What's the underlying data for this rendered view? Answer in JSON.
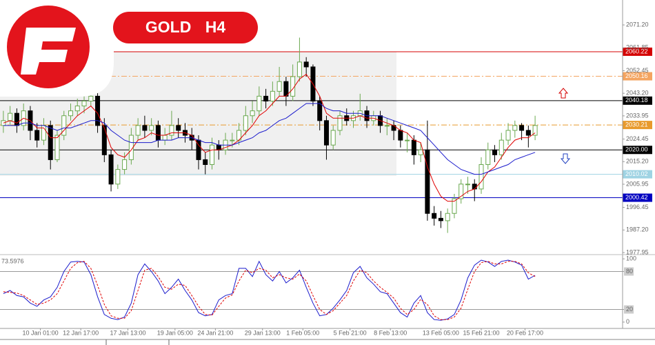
{
  "chart_data": [
    {
      "type": "candlestick",
      "title": "GOLD H4",
      "xlim": [
        -0.5,
        92
      ],
      "xticks": [
        {
          "value": 5.5,
          "label": "10 Jan 01:00"
        },
        {
          "value": 11.5,
          "label": "12 Jan 17:00"
        },
        {
          "value": 18.5,
          "label": "17 Jan 13:00"
        },
        {
          "value": 25.5,
          "label": "19 Jan 05:00"
        },
        {
          "value": 31.5,
          "label": "24 Jan 21:00"
        },
        {
          "value": 38.5,
          "label": "29 Jan 13:00"
        },
        {
          "value": 44.5,
          "label": "1 Feb 05:00"
        },
        {
          "value": 51.5,
          "label": "5 Feb 21:00"
        },
        {
          "value": 57.5,
          "label": "8 Feb 13:00"
        },
        {
          "value": 65,
          "label": "13 Feb 05:00"
        },
        {
          "value": 71,
          "label": "15 Feb 21:00"
        },
        {
          "value": 77.5,
          "label": "20 Feb 17:00"
        }
      ],
      "ylim": [
        1977.4,
        2081.4
      ],
      "yticks": [
        {
          "value": 2071.2,
          "label": "2071.20"
        },
        2061.85,
        2052.45,
        {
          "value": 2043.2,
          "label": "2043.20"
        },
        2033.95,
        2024.45,
        {
          "value": 2015.2,
          "label": "2015.20"
        },
        2005.95,
        1996.45,
        {
          "value": 1987.2,
          "label": "1987.20"
        },
        1977.95
      ],
      "up_color": "#6aa84f",
      "down_color": "#000000",
      "open": [
        2030,
        2032,
        2035,
        2030,
        2036,
        2028,
        2024,
        2030,
        2016,
        2026,
        2034,
        2036,
        2038,
        2040,
        2042,
        2030,
        2018,
        2006,
        2012,
        2016,
        2026,
        2030,
        2028,
        2030,
        2024,
        2026,
        2030,
        2028,
        2026,
        2024,
        2016,
        2014,
        2022,
        2020,
        2024,
        2024,
        2028,
        2034,
        2036,
        2042,
        2040,
        2044,
        2048,
        2042,
        2050,
        2056,
        2054,
        2040,
        2032,
        2022,
        2028,
        2034,
        2032,
        2034,
        2036,
        2032,
        2034,
        2030,
        2030,
        2028,
        2024,
        2024,
        2018,
        2020,
        1994,
        1992,
        1991,
        1994,
        2000,
        2006,
        2006,
        2004,
        2014,
        2020,
        2018,
        2024,
        2028,
        2030,
        2028,
        2026
      ],
      "high": [
        2036,
        2038,
        2037,
        2039,
        2038,
        2031,
        2033,
        2032,
        2028,
        2036,
        2039,
        2041,
        2042,
        2045,
        2044,
        2033,
        2020,
        2014,
        2019,
        2029,
        2033,
        2034,
        2033,
        2032,
        2029,
        2036,
        2033,
        2031,
        2029,
        2026,
        2019,
        2025,
        2024,
        2027,
        2027,
        2031,
        2038,
        2040,
        2046,
        2045,
        2048,
        2054,
        2050,
        2055,
        2066,
        2058,
        2055,
        2042,
        2034,
        2030,
        2036,
        2037,
        2036,
        2043,
        2038,
        2036,
        2036,
        2033,
        2032,
        2030,
        2027,
        2026,
        2023,
        2032,
        1997,
        1995,
        1996,
        2002,
        2008,
        2009,
        2008,
        2017,
        2023,
        2022,
        2027,
        2031,
        2032,
        2031,
        2030,
        2034
      ],
      "low": [
        2027,
        2030,
        2027,
        2028,
        2024,
        2021,
        2022,
        2012,
        2015,
        2024,
        2032,
        2034,
        2035,
        2038,
        2027,
        2015,
        2003,
        2004,
        2010,
        2014,
        2024,
        2025,
        2026,
        2021,
        2022,
        2024,
        2025,
        2023,
        2020,
        2012,
        2010,
        2012,
        2016,
        2018,
        2021,
        2022,
        2026,
        2031,
        2034,
        2037,
        2038,
        2042,
        2038,
        2040,
        2048,
        2050,
        2038,
        2028,
        2016,
        2020,
        2026,
        2030,
        2029,
        2032,
        2029,
        2030,
        2027,
        2026,
        2024,
        2021,
        2019,
        2014,
        2015,
        1991,
        1989,
        1988,
        1986,
        1992,
        1998,
        2002,
        1999,
        2002,
        2012,
        2015,
        2016,
        2022,
        2025,
        2024,
        2021,
        2024
      ],
      "close": [
        2032,
        2035,
        2030,
        2036,
        2028,
        2024,
        2030,
        2016,
        2026,
        2034,
        2036,
        2038,
        2040,
        2042,
        2030,
        2018,
        2006,
        2012,
        2016,
        2026,
        2030,
        2028,
        2030,
        2024,
        2026,
        2030,
        2028,
        2026,
        2024,
        2016,
        2014,
        2022,
        2020,
        2024,
        2024,
        2028,
        2034,
        2036,
        2042,
        2040,
        2044,
        2048,
        2042,
        2050,
        2056,
        2054,
        2040,
        2032,
        2022,
        2028,
        2034,
        2032,
        2034,
        2036,
        2032,
        2034,
        2030,
        2030,
        2028,
        2024,
        2024,
        2018,
        2020,
        1994,
        1992,
        1991,
        1994,
        2000,
        2006,
        2006,
        2004,
        2014,
        2020,
        2018,
        2024,
        2028,
        2030,
        2028,
        2026,
        2030
      ],
      "series": [
        {
          "color": "#e00000",
          "values": [
            2031,
            2032,
            2031,
            2033,
            2032,
            2029,
            2029,
            2025,
            2025,
            2028,
            2031,
            2034,
            2036,
            2038,
            2035,
            2029,
            2021,
            2018,
            2017,
            2020,
            2024,
            2025,
            2027,
            2026,
            2026,
            2027,
            2027,
            2027,
            2026,
            2022,
            2019,
            2020,
            2020,
            2021,
            2022,
            2024,
            2027,
            2030,
            2034,
            2036,
            2039,
            2042,
            2042,
            2045,
            2049,
            2051,
            2047,
            2042,
            2035,
            2033,
            2033,
            2033,
            2033,
            2034,
            2033,
            2033,
            2032,
            2031,
            2030,
            2028,
            2027,
            2024,
            2023,
            2013,
            2006,
            2001,
            1999,
            1999,
            2001,
            2003,
            2004,
            2007,
            2011,
            2013,
            2017,
            2021,
            2024,
            2025,
            2025,
            2027
          ]
        },
        {
          "color": "#1a1acc",
          "values": [
            2030,
            2030,
            2030,
            2031,
            2031,
            2030,
            2030,
            2029,
            2028,
            2029,
            2029,
            2030,
            2031,
            2032,
            2032,
            2031,
            2028,
            2026,
            2024,
            2023,
            2023,
            2023,
            2023,
            2024,
            2024,
            2024,
            2025,
            2025,
            2025,
            2024,
            2023,
            2023,
            2022,
            2022,
            2022,
            2023,
            2024,
            2025,
            2027,
            2028,
            2030,
            2032,
            2033,
            2035,
            2037,
            2039,
            2039,
            2039,
            2037,
            2036,
            2036,
            2035,
            2035,
            2035,
            2034,
            2034,
            2034,
            2033,
            2032,
            2031,
            2030,
            2029,
            2028,
            2025,
            2022,
            2019,
            2016,
            2014,
            2012,
            2011,
            2010,
            2010,
            2011,
            2012,
            2013,
            2014,
            2016,
            2017,
            2018,
            2019
          ]
        }
      ],
      "levels": [
        {
          "value": 2060.22,
          "color": "#d40000",
          "dash": false
        },
        {
          "value": 2050.16,
          "color": "#f4a460",
          "dash": true
        },
        {
          "value": 2040.18,
          "color": "#000000",
          "dash": false
        },
        {
          "value": 2030.21,
          "color": "#e89a2c",
          "dash": true
        },
        {
          "value": 2020,
          "label": "2020.00",
          "color": "#000000",
          "dash": false
        },
        {
          "value": 2010.02,
          "color": "#9fd3e3",
          "dash": false
        },
        {
          "value": 2000.42,
          "color": "#0000c0",
          "dash": false
        }
      ]
    },
    {
      "type": "line",
      "indicator_label": "73.5976",
      "ylim": [
        -10,
        106.7
      ],
      "yticks": [
        100,
        80,
        20,
        0
      ],
      "levels": [
        80,
        20
      ],
      "series": [
        {
          "color": "#1a1acc",
          "dash": false,
          "values": [
            45,
            50,
            42,
            40,
            30,
            25,
            35,
            40,
            55,
            80,
            95,
            96,
            95,
            75,
            40,
            12,
            6,
            4,
            8,
            30,
            75,
            92,
            80,
            65,
            45,
            55,
            68,
            50,
            35,
            15,
            10,
            12,
            35,
            42,
            45,
            85,
            85,
            72,
            96,
            75,
            65,
            80,
            62,
            70,
            82,
            55,
            30,
            10,
            12,
            22,
            35,
            50,
            78,
            88,
            70,
            60,
            48,
            45,
            30,
            15,
            8,
            30,
            42,
            15,
            4,
            3,
            5,
            12,
            35,
            70,
            90,
            98,
            95,
            88,
            96,
            98,
            95,
            90,
            68,
            74
          ]
        },
        {
          "color": "#e00000",
          "dash": true,
          "values": [
            48,
            47,
            46,
            42,
            35,
            28,
            30,
            35,
            45,
            65,
            85,
            94,
            96,
            85,
            58,
            28,
            10,
            6,
            6,
            18,
            50,
            82,
            85,
            72,
            55,
            52,
            60,
            58,
            42,
            25,
            12,
            11,
            25,
            38,
            43,
            65,
            82,
            78,
            85,
            82,
            70,
            75,
            70,
            68,
            76,
            65,
            42,
            20,
            12,
            18,
            30,
            42,
            65,
            82,
            78,
            65,
            55,
            47,
            38,
            22,
            12,
            20,
            36,
            28,
            10,
            4,
            4,
            8,
            22,
            52,
            80,
            94,
            96,
            92,
            92,
            96,
            96,
            92,
            78,
            72
          ]
        }
      ]
    }
  ]
}
